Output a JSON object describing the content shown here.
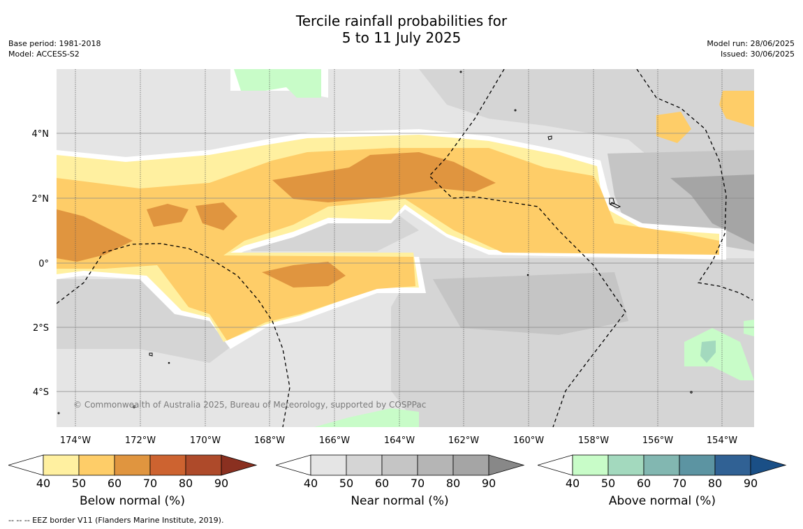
{
  "title": {
    "line1": "Tercile rainfall probabilities for",
    "line2": "5 to 11 July 2025"
  },
  "meta": {
    "base_period": "Base period: 1981-2018",
    "model": "Model: ACCESS-S2",
    "model_run": "Model run: 28/06/2025",
    "issued": "Issued: 30/06/2025"
  },
  "map": {
    "lat_labels": [
      "4°N",
      "2°N",
      "0°",
      "2°S",
      "4°S"
    ],
    "lon_labels": [
      "174°W",
      "172°W",
      "170°W",
      "168°W",
      "166°W",
      "164°W",
      "162°W",
      "160°W",
      "158°W",
      "156°W",
      "154°W"
    ],
    "copyright": "© Commonwealth of Australia 2025, Bureau of Meteorology, supported by COSPPac"
  },
  "colorbars": [
    {
      "title": "Below normal (%)",
      "ticks": [
        "40",
        "50",
        "60",
        "70",
        "80",
        "90"
      ],
      "colors": [
        "#ffffff",
        "#fff0a0",
        "#fecd68",
        "#e0953f",
        "#cd6330",
        "#ae4a2a",
        "#8a3020"
      ]
    },
    {
      "title": "Near normal (%)",
      "ticks": [
        "40",
        "50",
        "60",
        "70",
        "80",
        "90"
      ],
      "colors": [
        "#ffffff",
        "#e5e5e5",
        "#d5d5d5",
        "#c5c5c5",
        "#b5b5b5",
        "#a5a5a5",
        "#888888"
      ]
    },
    {
      "title": "Above normal (%)",
      "ticks": [
        "40",
        "50",
        "60",
        "70",
        "80",
        "90"
      ],
      "colors": [
        "#ffffff",
        "#c8fcc8",
        "#a3d9be",
        "#82b7b1",
        "#5c94a2",
        "#306194",
        "#1a4f86"
      ]
    }
  ],
  "footnote": "--  --  -- EEZ border V11 (Flanders Marine Institute, 2019)."
}
